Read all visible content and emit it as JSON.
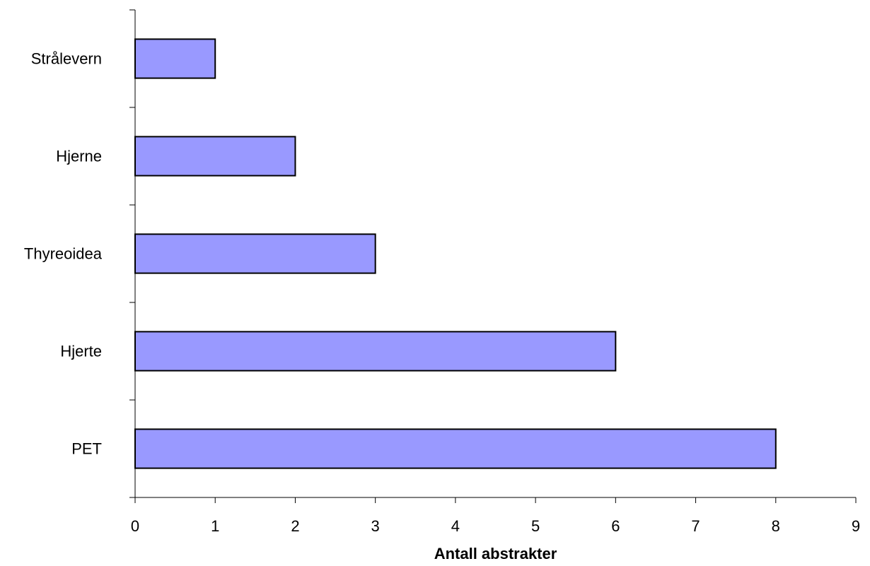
{
  "chart_data": {
    "type": "bar",
    "orientation": "horizontal",
    "categories": [
      "Strålevern",
      "Hjerne",
      "Thyreoidea",
      "Hjerte",
      "PET"
    ],
    "values": [
      1,
      2,
      3,
      6,
      8
    ],
    "xlabel": "Antall abstrakter",
    "ylabel": "",
    "xlim": [
      0,
      9
    ],
    "xticks": [
      0,
      1,
      2,
      3,
      4,
      5,
      6,
      7,
      8,
      9
    ],
    "grid": false,
    "legend": "none",
    "bar_color": "#9999ff",
    "bar_edge_color": "#000000"
  }
}
